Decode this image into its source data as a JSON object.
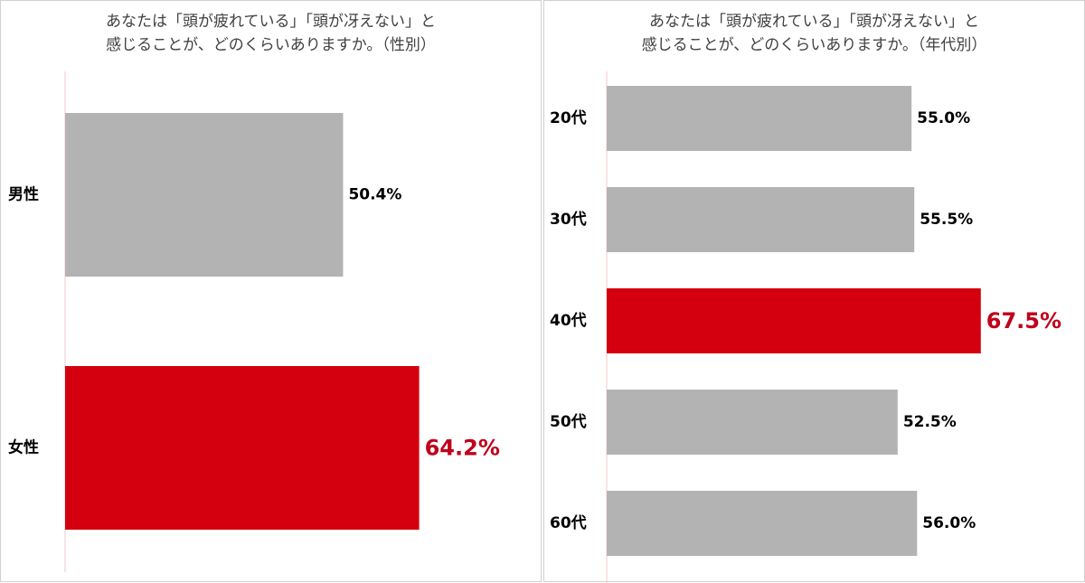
{
  "colors": {
    "default_bar": "#b3b3b3",
    "highlight_bar": "#d4000f",
    "highlight_text": "#c0001a",
    "axis": "#f0c8c8"
  },
  "chart_data": [
    {
      "type": "bar",
      "orientation": "horizontal",
      "title_lines": [
        "あなたは「頭が疲れている」「頭が冴えない」と",
        "感じることが、どのくらいありますか。（性別）"
      ],
      "categories": [
        "男性",
        "女性"
      ],
      "values": [
        50.4,
        64.2
      ],
      "labels": [
        "50.4%",
        "64.2%"
      ],
      "highlight": [
        false,
        true
      ],
      "xlim": [
        0,
        100
      ]
    },
    {
      "type": "bar",
      "orientation": "horizontal",
      "title_lines": [
        "あなたは「頭が疲れている」「頭が冴えない」と",
        "感じることが、どのくらいありますか。（年代別）"
      ],
      "categories": [
        "20代",
        "30代",
        "40代",
        "50代",
        "60代"
      ],
      "values": [
        55.0,
        55.5,
        67.5,
        52.5,
        56.0
      ],
      "labels": [
        "55.0%",
        "55.5%",
        "67.5%",
        "52.5%",
        "56.0%"
      ],
      "highlight": [
        false,
        false,
        true,
        false,
        false
      ],
      "xlim": [
        0,
        100
      ]
    }
  ]
}
